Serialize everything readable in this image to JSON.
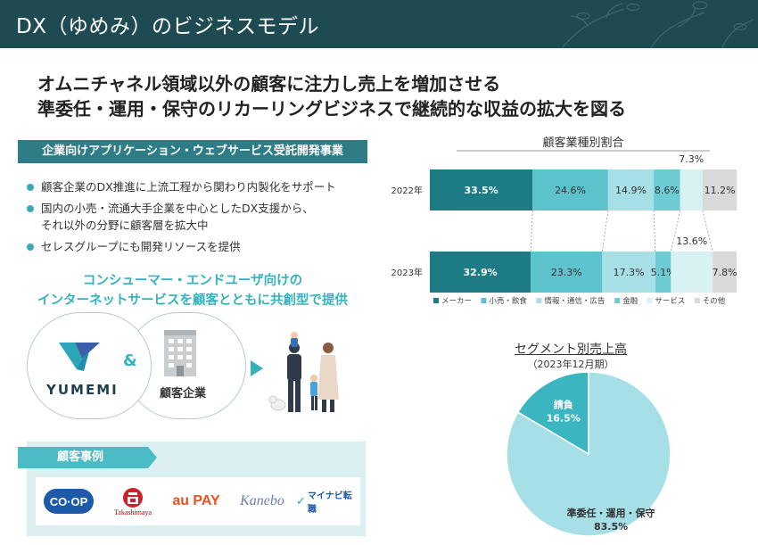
{
  "header": {
    "title": "DX（ゆめみ）のビジネスモデル"
  },
  "headline": {
    "line1": "オムニチャネル領域以外の顧客に注力し売上を増加させる",
    "line2": "準委任・運用・保守のリカーリングビジネスで継続的な収益の拡大を図る"
  },
  "business": {
    "title": "企業向けアプリケーション・ウェブサービス受託開発事業",
    "bullets": [
      "顧客企業のDX推進に上流工程から関わり内製化をサポート",
      "国内の小売・流通大手企業を中心としたDX支援から、",
      "それ以外の分野に顧客層を拡大中",
      "セレスグループにも開発リソースを提供"
    ]
  },
  "cocreate": {
    "line1": "コンシューマー・エンドユーザ向けの",
    "line2": "インターネットサービスを顧客とともに共創型で提供"
  },
  "venn": {
    "yumemi": "YUMEMI",
    "amp": "&",
    "client": "顧客企業"
  },
  "cases": {
    "title": "顧客事例",
    "logos": [
      "CO·OP",
      "Takashimaya",
      "au PAY",
      "Kanebo",
      "マイナビ転職"
    ]
  },
  "colors": {
    "header": "#1e4a52",
    "accent": "#32b3bf",
    "maker": "#1d7b86",
    "retail": "#5cc2cc",
    "info": "#a6e0e6",
    "finance": "#6ccbd3",
    "service": "#d8f2f4",
    "other": "#d9d9d9"
  },
  "chart_data": [
    {
      "type": "bar",
      "orientation": "horizontal",
      "stacked": "100%",
      "title": "顧客業種別割合",
      "categories": [
        "2022年",
        "2023年"
      ],
      "series": [
        {
          "name": "メーカー",
          "values": [
            33.5,
            32.9
          ],
          "labels": [
            "33.5%",
            "32.9%"
          ]
        },
        {
          "name": "小売・飲食",
          "values": [
            24.6,
            23.3
          ],
          "labels": [
            "24.6%",
            "23.3%"
          ]
        },
        {
          "name": "情報・通信・広告",
          "values": [
            14.9,
            17.3
          ],
          "labels": [
            "14.9%",
            "17.3%"
          ]
        },
        {
          "name": "金融",
          "values": [
            8.6,
            5.1
          ],
          "labels": [
            "8.6%",
            "5.1%"
          ]
        },
        {
          "name": "サービス",
          "values": [
            7.3,
            13.6
          ],
          "labels": [
            "7.3%",
            "13.6%"
          ]
        },
        {
          "name": "その他",
          "values": [
            11.2,
            7.8
          ],
          "labels": [
            "11.2%",
            "7.8%"
          ]
        }
      ],
      "legend": "bottom"
    },
    {
      "type": "pie",
      "title": "セグメント別売上高",
      "subtitle": "（2023年12月期）",
      "slices": [
        {
          "name": "請負",
          "value": 16.5,
          "label": "16.5%"
        },
        {
          "name": "準委任・運用・保守",
          "value": 83.5,
          "label": "83.5%"
        }
      ]
    }
  ]
}
